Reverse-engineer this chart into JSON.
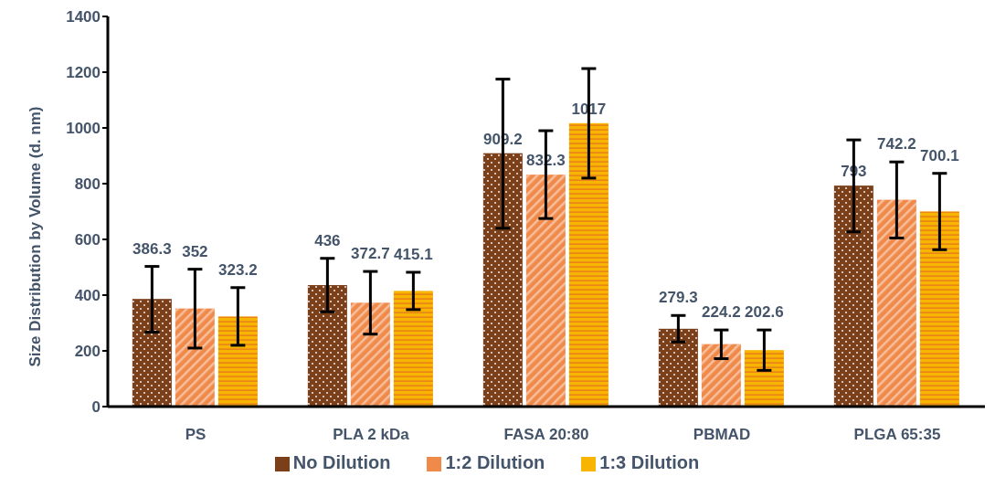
{
  "chart_data": {
    "type": "bar",
    "ylabel": "Size Distribution by Volume (d. nm)",
    "categories": [
      "PS",
      "PLA 2  kDa",
      "FASA 20:80",
      "PBMAD",
      "PLGA 65:35"
    ],
    "series": [
      {
        "name": "No Dilution",
        "color": "#7b3f1a",
        "values": [
          386.3,
          436,
          909.2,
          279.3,
          793
        ],
        "errors": [
          [
            267,
            503
          ],
          [
            340,
            532
          ],
          [
            640,
            1175
          ],
          [
            232,
            327
          ],
          [
            627,
            957
          ]
        ]
      },
      {
        "name": "1:2 Dilution",
        "color": "#f08a4b",
        "values": [
          352,
          372.7,
          832.3,
          224.2,
          742.2
        ],
        "errors": [
          [
            210,
            493
          ],
          [
            260,
            485
          ],
          [
            675,
            990
          ],
          [
            172,
            275
          ],
          [
            605,
            878
          ]
        ]
      },
      {
        "name": "1:3 Dilution",
        "color": "#f7b500",
        "values": [
          323.2,
          415.1,
          1017,
          202.6,
          700.1
        ],
        "errors": [
          [
            220,
            427
          ],
          [
            348,
            482
          ],
          [
            820,
            1213
          ],
          [
            130,
            275
          ],
          [
            563,
            837
          ]
        ]
      }
    ],
    "ylim": [
      0,
      1400
    ],
    "yticks": [
      0,
      200,
      400,
      600,
      800,
      1000,
      1200,
      1400
    ],
    "data_labels": true,
    "grid": false,
    "legend": "bottom"
  }
}
